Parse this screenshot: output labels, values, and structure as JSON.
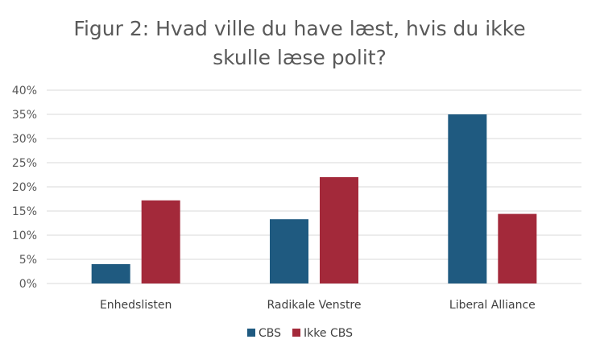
{
  "chart_data": {
    "type": "bar",
    "title_lines": [
      "Figur 2: Hvad ville du have læst, hvis du ikke",
      "skulle læse polit?"
    ],
    "categories": [
      "Enhedslisten",
      "Radikale Venstre",
      "Liberal Alliance"
    ],
    "series": [
      {
        "name": "CBS",
        "color": "#1f5a80",
        "values": [
          4,
          13.3,
          35
        ]
      },
      {
        "name": "Ikke CBS",
        "color": "#a3293a",
        "values": [
          17.2,
          22,
          14.4
        ]
      }
    ],
    "ylim": [
      0,
      40
    ],
    "yticks": [
      "0%",
      "5%",
      "10%",
      "15%",
      "20%",
      "25%",
      "30%",
      "35%",
      "40%"
    ],
    "grid": true,
    "legend_position": "bottom"
  }
}
